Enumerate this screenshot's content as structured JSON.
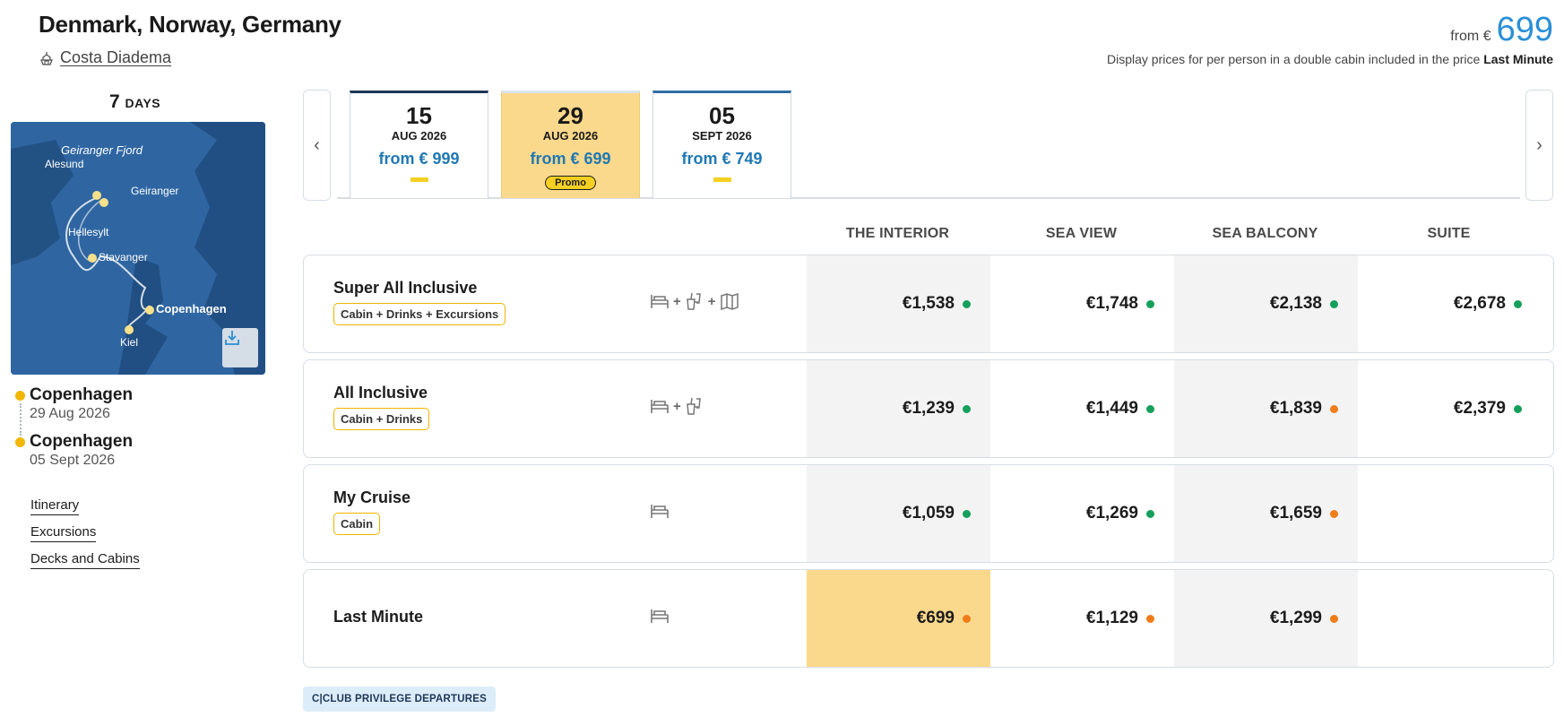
{
  "header": {
    "title": "Denmark, Norway, Germany",
    "ship": "Costa Diadema",
    "from_prefix": "from €",
    "from_amount": "699",
    "price_note_text": "Display prices for per person in a double cabin included in the price ",
    "price_note_bold": "Last Minute"
  },
  "duration": {
    "number": "7",
    "unit": "DAYS"
  },
  "map": {
    "labels": {
      "geiranger_fjord": "Geiranger Fjord",
      "alesund": "Alesund",
      "geiranger": "Geiranger",
      "hellesylt": "Hellesylt",
      "stavanger": "Stavanger",
      "copenhagen": "Copenhagen",
      "kiel": "Kiel"
    },
    "download_icon": "download-icon"
  },
  "route": {
    "departure": {
      "city": "Copenhagen",
      "date": "29 Aug 2026"
    },
    "arrival": {
      "city": "Copenhagen",
      "date": "05 Sept 2026"
    }
  },
  "links": {
    "itinerary": "Itinerary",
    "excursions": "Excursions",
    "decks": "Decks and Cabins"
  },
  "date_tabs": [
    {
      "day": "15",
      "month": "AUG 2026",
      "price": "from € 999",
      "selected": false
    },
    {
      "day": "29",
      "month": "AUG 2026",
      "price": "from € 699",
      "selected": true,
      "promo": "Promo"
    },
    {
      "day": "05",
      "month": "SEPT 2026",
      "price": "from € 749",
      "selected": false
    }
  ],
  "nav": {
    "prev": "‹",
    "next": "›"
  },
  "columns": [
    "THE INTERIOR",
    "SEA VIEW",
    "SEA BALCONY",
    "SUITE"
  ],
  "rows": [
    {
      "name": "Super All Inclusive",
      "badge": "Cabin + Drinks + Excursions",
      "icons": [
        "bed-icon",
        "drinks-icon",
        "map-icon"
      ],
      "prices": [
        {
          "value": "€1,538",
          "status": "green"
        },
        {
          "value": "€1,748",
          "status": "green"
        },
        {
          "value": "€2,138",
          "status": "green"
        },
        {
          "value": "€2,678",
          "status": "green"
        }
      ]
    },
    {
      "name": "All Inclusive",
      "badge": "Cabin + Drinks",
      "icons": [
        "bed-icon",
        "drinks-icon"
      ],
      "prices": [
        {
          "value": "€1,239",
          "status": "green"
        },
        {
          "value": "€1,449",
          "status": "green"
        },
        {
          "value": "€1,839",
          "status": "orange"
        },
        {
          "value": "€2,379",
          "status": "green"
        }
      ]
    },
    {
      "name": "My Cruise",
      "badge": "Cabin",
      "icons": [
        "bed-icon"
      ],
      "prices": [
        {
          "value": "€1,059",
          "status": "green"
        },
        {
          "value": "€1,269",
          "status": "green"
        },
        {
          "value": "€1,659",
          "status": "orange"
        }
      ]
    },
    {
      "name": "Last Minute",
      "icons": [
        "bed-icon"
      ],
      "prices": [
        {
          "value": "€699",
          "status": "orange"
        },
        {
          "value": "€1,129",
          "status": "orange"
        },
        {
          "value": "€1,299",
          "status": "orange"
        }
      ]
    }
  ],
  "plus_sign": "+",
  "colors": {
    "accent_blue": "#2a8fd6",
    "price_blue": "#1f78b4",
    "highlight": "#fbd98c",
    "promo_yellow": "#f5d022",
    "status_green": "#14a05a",
    "status_orange": "#f07c1a"
  },
  "club_button": "C|CLUB PRIVILEGE DEPARTURES"
}
